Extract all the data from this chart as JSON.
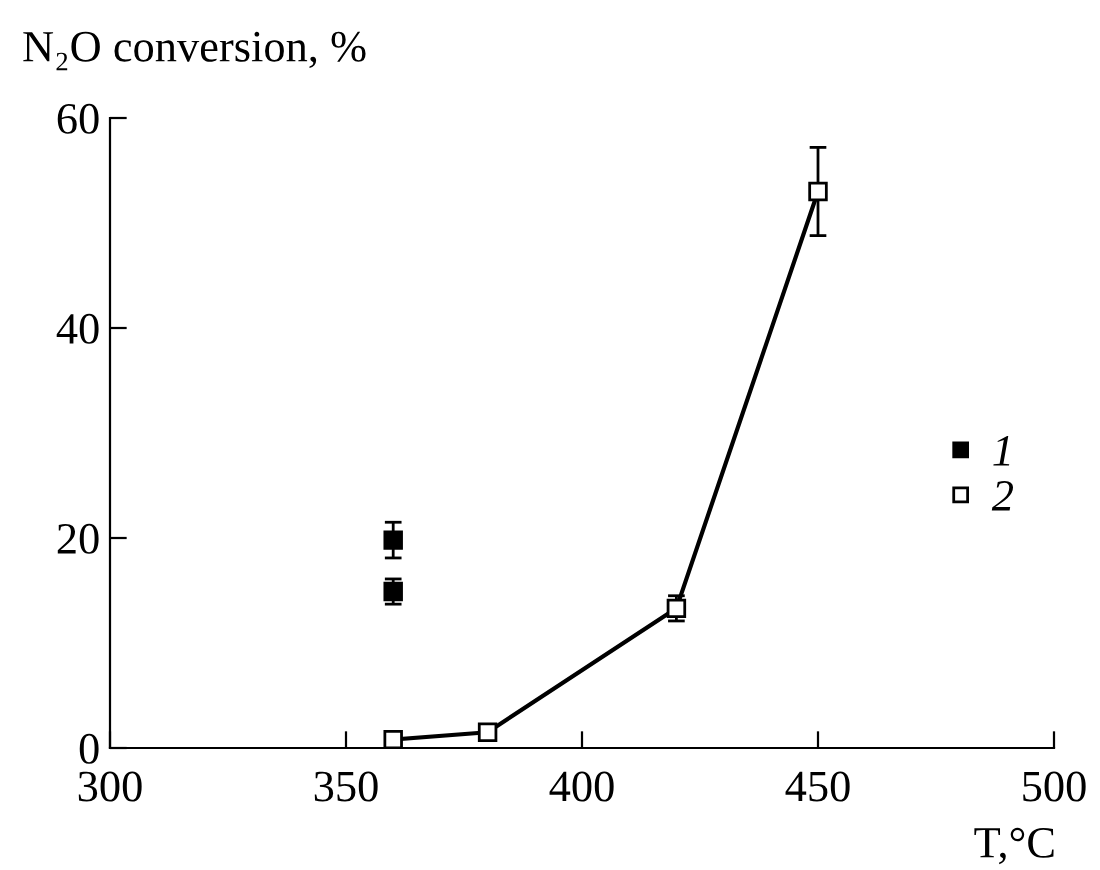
{
  "chart_data": {
    "type": "scatter",
    "ylabel": "N₂O conversion, %",
    "xlabel": "T,°C",
    "xlim": [
      300,
      500
    ],
    "xticks": [
      300,
      350,
      400,
      450,
      500
    ],
    "ylim": [
      0,
      60
    ],
    "yticks": [
      0,
      20,
      40,
      60
    ],
    "grid": false,
    "legend": "right",
    "series": [
      {
        "name": "1",
        "marker": "square",
        "color": "#000000",
        "x": [
          360,
          360
        ],
        "values": [
          19.8,
          14.9
        ],
        "errors": [
          1.7,
          1.2
        ]
      },
      {
        "name": "2",
        "type": "line",
        "marker": "square",
        "color": "#000000",
        "x": [
          360,
          380,
          420,
          450
        ],
        "values": [
          0.8,
          1.5,
          13.3,
          53
        ],
        "errors": [
          null,
          null,
          1.2,
          4.2
        ]
      }
    ]
  }
}
